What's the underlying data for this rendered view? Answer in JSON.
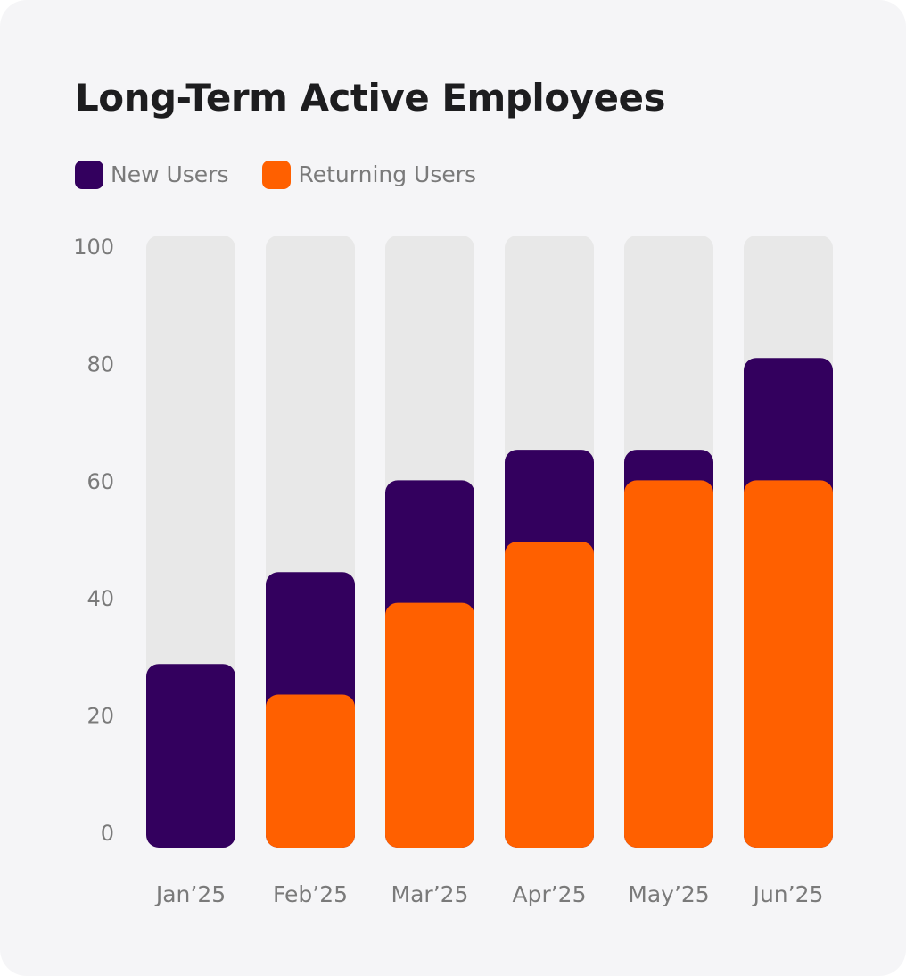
{
  "colors": {
    "card_bg": "#f5f5f7",
    "track": "#e8e8e8",
    "new_users": "#33005e",
    "returning_users": "#ff6000",
    "title": "#1d1d1f",
    "muted_text": "#7a7a7a"
  },
  "chart_data": {
    "type": "bar",
    "stacked": true,
    "title": "Long-Term Active Employees",
    "xlabel": "",
    "ylabel": "",
    "ylim": [
      0,
      100
    ],
    "yticks": [
      0,
      20,
      40,
      60,
      80,
      100
    ],
    "grid": false,
    "legend_position": "top-left",
    "legend": [
      "New Users",
      "Returning Users"
    ],
    "categories": [
      "Jan’25",
      "Feb’25",
      "Mar’25",
      "Apr’25",
      "May’25",
      "Jun’25"
    ],
    "series": [
      {
        "name": "Returning Users",
        "color": "#ff6000",
        "values": [
          0,
          25,
          40,
          50,
          60,
          60
        ]
      },
      {
        "name": "New Users",
        "color": "#33005e",
        "values": [
          30,
          20,
          20,
          15,
          5,
          20
        ]
      }
    ],
    "totals": [
      30,
      45,
      60,
      65,
      65,
      80
    ],
    "track_max": 100
  }
}
